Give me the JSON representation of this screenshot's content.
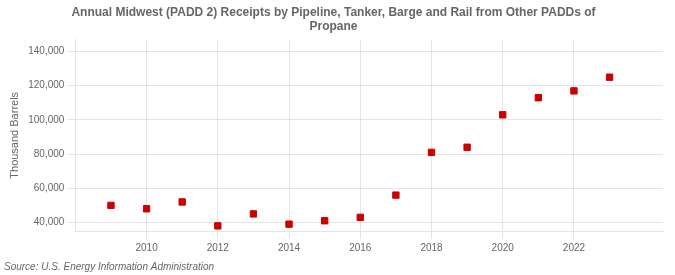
{
  "chart_data": {
    "type": "scatter",
    "title": "Annual Midwest (PADD 2) Receipts by Pipeline, Tanker, Barge and Rail from Other PADDs of\nPropane",
    "ylabel": "Thousand Barrels",
    "source": "Source: U.S. Energy Information Administration",
    "x": [
      2009,
      2010,
      2011,
      2012,
      2013,
      2014,
      2015,
      2016,
      2017,
      2018,
      2019,
      2020,
      2021,
      2022,
      2023
    ],
    "values": [
      50000,
      48000,
      52000,
      38000,
      45000,
      39000,
      41000,
      43000,
      56000,
      81000,
      84000,
      103000,
      113000,
      117000,
      125000
    ],
    "color": "#cc0000",
    "marker": "square",
    "xlim": [
      2008.0,
      2024.5
    ],
    "xticks": [
      2010,
      2012,
      2014,
      2016,
      2018,
      2020,
      2022
    ],
    "ylim": [
      35000,
      147000
    ],
    "yticks": [
      {
        "value": 40000,
        "label": "40,000"
      },
      {
        "value": 60000,
        "label": "60,000"
      },
      {
        "value": 80000,
        "label": "80,000"
      },
      {
        "value": 100000,
        "label": "100,000"
      },
      {
        "value": 120000,
        "label": "120,000"
      },
      {
        "value": 140000,
        "label": "140,000"
      }
    ],
    "grid": true
  }
}
